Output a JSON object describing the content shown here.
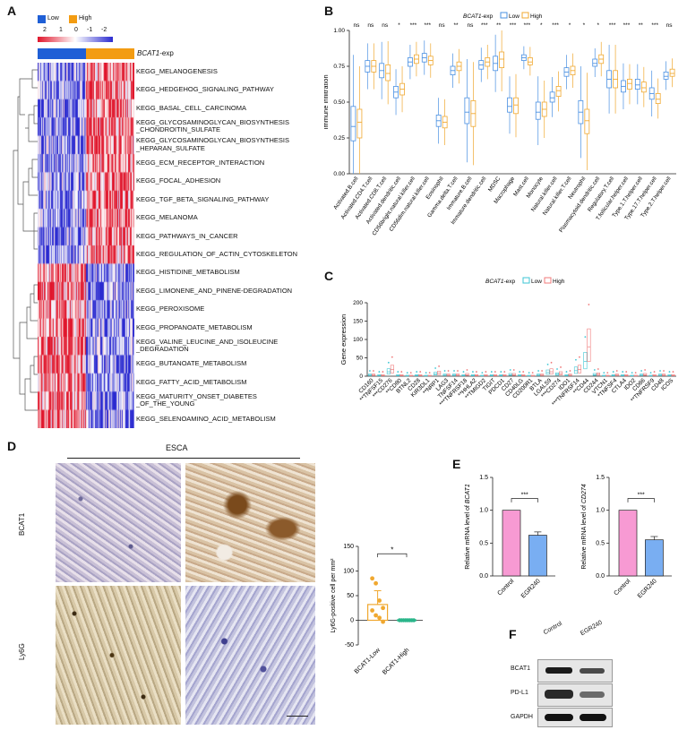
{
  "panels": {
    "A": "A",
    "B": "B",
    "C": "C",
    "D": "D",
    "E": "E",
    "F": "F"
  },
  "colors": {
    "low": "#1f5fd6",
    "high": "#f39c12",
    "heat_red": "#e0152b",
    "heat_blue": "#2a2ad0",
    "pink": "#f79ad3",
    "bar_blue": "#79aef2",
    "box_blue": "#4a90e2",
    "box_orange": "#f0a830"
  },
  "panelA": {
    "legend_low": "Low",
    "legend_high": "High",
    "scale_ticks": [
      "2",
      "1",
      "0",
      "-1",
      "-2"
    ],
    "track_label_italic": "BCAT1",
    "track_label_suffix": "-exp",
    "rows": [
      "KEGG_MELANOGENESIS",
      "KEGG_HEDGEHOG_SIGNALING_PATHWAY",
      "KEGG_BASAL_CELL_CARCINOMA",
      "KEGG_GLYCOSAMINOGLYCAN_BIOSYNTHESIS\n_CHONDROITIN_SULFATE",
      "KEGG_GLYCOSAMINOGLYCAN_BIOSYNTHESIS\n_HEPARAN_SULFATE",
      "KEGG_ECM_RECEPTOR_INTERACTION",
      "KEGG_FOCAL_ADHESION",
      "KEGG_TGF_BETA_SIGNALING_PATHWAY",
      "KEGG_MELANOMA",
      "KEGG_PATHWAYS_IN_CANCER",
      "KEGG_REGULATION_OF_ACTIN_CYTOSKELETON",
      "KEGG_HISTIDINE_METABOLISM",
      "KEGG_LIMONENE_AND_PINENE-DEGRADATION",
      "KEGG_PEROXISOME",
      "KEGG_PROPANOATE_METABOLISM",
      "KEGG_VALINE_LEUCINE_AND_ISOLEUCINE\n_DEGRADATION",
      "KEGG_BUTANOATE_METABOLISM",
      "KEGG_FATTY_ACID_METABOLISM",
      "KEGG_MATURITY_ONSET_DIABETES\n_OF_THE_YOUNG",
      "KEGG_SELENOAMINO_ACID_METABOLISM"
    ]
  },
  "chart_data": [
    {
      "type": "box",
      "panel": "B",
      "legend_title_italic": "BCAT1",
      "legend_title_suffix": "-exp",
      "legend": [
        "Low",
        "High"
      ],
      "ylabel": "Immune infiltration",
      "ylim": [
        0.0,
        1.0
      ],
      "yticks": [
        "0.00",
        "0.25",
        "0.50",
        "0.75",
        "1.00"
      ],
      "categories": [
        "Activated.B.cell",
        "Activated.CD4.T.cell",
        "Activated.CD8.T.cell",
        "Activated.dendritic.cell",
        "CD56bright.natural.killer.cell",
        "CD56dim.natural.killer.cell",
        "Eosinophil",
        "Gamma.delta.T.cell",
        "Immature.B.cell",
        "Immature.dendritic.cell",
        "MDSC",
        "Macrophage",
        "Mast.cell",
        "Monocyte",
        "Natural.killer.cell",
        "Natural.killer.T.cell",
        "Neutrophil",
        "Plasmacytoid.dendritic.cell",
        "Regulatory.T.cell",
        "T.follicular.helper.cell",
        "Type.1.T.helper.cell",
        "Type.17.T.helper.cell",
        "Type.2.T.helper.cell"
      ],
      "significance": [
        "ns",
        "ns",
        "ns",
        "*",
        "***",
        "***",
        "ns",
        "**",
        "ns",
        "***",
        "**",
        "***",
        "***",
        "*",
        "***",
        "*",
        "*",
        "*",
        "***",
        "***",
        "**",
        "***",
        "ns"
      ],
      "series": [
        {
          "name": "Low",
          "medians": [
            0.33,
            0.75,
            0.72,
            0.57,
            0.78,
            0.81,
            0.37,
            0.72,
            0.43,
            0.76,
            0.77,
            0.47,
            0.81,
            0.43,
            0.53,
            0.71,
            0.43,
            0.77,
            0.66,
            0.61,
            0.62,
            0.56,
            0.68
          ],
          "q1": [
            0.23,
            0.71,
            0.67,
            0.53,
            0.75,
            0.78,
            0.33,
            0.69,
            0.35,
            0.73,
            0.72,
            0.43,
            0.79,
            0.38,
            0.5,
            0.68,
            0.35,
            0.75,
            0.6,
            0.57,
            0.59,
            0.52,
            0.66
          ],
          "q3": [
            0.47,
            0.79,
            0.77,
            0.61,
            0.81,
            0.84,
            0.41,
            0.75,
            0.53,
            0.79,
            0.82,
            0.53,
            0.83,
            0.5,
            0.57,
            0.74,
            0.51,
            0.8,
            0.72,
            0.65,
            0.66,
            0.6,
            0.71
          ]
        },
        {
          "name": "High",
          "medians": [
            0.36,
            0.75,
            0.7,
            0.59,
            0.8,
            0.79,
            0.36,
            0.75,
            0.42,
            0.78,
            0.8,
            0.48,
            0.78,
            0.45,
            0.58,
            0.72,
            0.37,
            0.8,
            0.66,
            0.63,
            0.6,
            0.52,
            0.7
          ],
          "q1": [
            0.25,
            0.71,
            0.65,
            0.55,
            0.77,
            0.76,
            0.32,
            0.72,
            0.33,
            0.75,
            0.74,
            0.42,
            0.76,
            0.4,
            0.54,
            0.69,
            0.28,
            0.77,
            0.6,
            0.59,
            0.57,
            0.49,
            0.68
          ],
          "q3": [
            0.45,
            0.79,
            0.76,
            0.63,
            0.83,
            0.82,
            0.4,
            0.78,
            0.51,
            0.81,
            0.85,
            0.53,
            0.81,
            0.5,
            0.61,
            0.75,
            0.45,
            0.83,
            0.72,
            0.66,
            0.64,
            0.56,
            0.73
          ]
        }
      ]
    },
    {
      "type": "box",
      "panel": "C",
      "legend_title_italic": "BCAT1",
      "legend_title_suffix": "-exp",
      "legend": [
        "Low",
        "High"
      ],
      "ylabel": "Gene expression",
      "ylim": [
        0,
        200
      ],
      "yticks": [
        "0",
        "50",
        "100",
        "150",
        "200"
      ],
      "categories": [
        "CD160",
        "TNFSF15",
        "CD276",
        "CD80",
        "BTNL2",
        "CD28",
        "KIR3DL1",
        "NRP1",
        "LAG3",
        "TNFSF14",
        "TNFRSF18",
        "HHLA2",
        "TMIGD2",
        "TIGIT",
        "PDCD1",
        "CD27",
        "CD40LG",
        "CD200R1",
        "BTLA",
        "LGALS9",
        "CD274",
        "IDO1",
        "TNFRSF14",
        "CD44",
        "CD244",
        "VTCN1",
        "TNFSF4",
        "CTLA4",
        "IDO2",
        "CD86",
        "TNFRSF9",
        "CD48",
        "ICOS"
      ],
      "xprefix": [
        "",
        "**",
        "***",
        "**",
        "",
        "",
        "",
        "**",
        "",
        "",
        "***",
        "**",
        "**",
        "",
        "",
        "",
        "",
        "",
        "",
        "",
        "***",
        "",
        "***",
        "**",
        "",
        "",
        "*",
        "",
        "",
        "",
        "**",
        "",
        ""
      ]
    },
    {
      "type": "scatter-bar",
      "panel": "D",
      "categories": [
        "BCAT1-Low",
        "BCAT1-High"
      ],
      "values": [
        32,
        0
      ],
      "points_low": [
        85,
        75,
        40,
        25,
        20,
        10,
        5,
        -3
      ],
      "points_high": [
        0,
        0,
        0,
        0,
        0,
        0,
        0,
        0
      ],
      "ylabel": "Ly6G-positive cell per mm²",
      "ylim": [
        -50,
        150
      ],
      "yticks": [
        "-50",
        "0",
        "50",
        "100",
        "150"
      ],
      "significance": "*"
    },
    {
      "type": "bar",
      "panel": "E1",
      "categories": [
        "Control",
        "EGR240"
      ],
      "values": [
        1.0,
        0.62
      ],
      "ylabel_prefix": "Relative mRNA level of ",
      "ylabel_gene": "BCAT1",
      "ylim": [
        0,
        1.5
      ],
      "yticks": [
        "0.0",
        "0.5",
        "1.0",
        "1.5"
      ],
      "significance": "***"
    },
    {
      "type": "bar",
      "panel": "E2",
      "categories": [
        "Control",
        "EGR240"
      ],
      "values": [
        1.0,
        0.55
      ],
      "ylabel_prefix": "Relative mRNA level of ",
      "ylabel_gene": "CD274",
      "ylim": [
        0,
        1.5
      ],
      "yticks": [
        "0.0",
        "0.5",
        "1.0",
        "1.5"
      ],
      "significance": "***"
    }
  ],
  "panelD": {
    "title": "ESCA",
    "row_labels": [
      "BCAT1",
      "Ly6G"
    ]
  },
  "panelF": {
    "columns": [
      "Control",
      "EGR240"
    ],
    "rows": [
      "BCAT1",
      "PD-L1",
      "GAPDH"
    ]
  }
}
